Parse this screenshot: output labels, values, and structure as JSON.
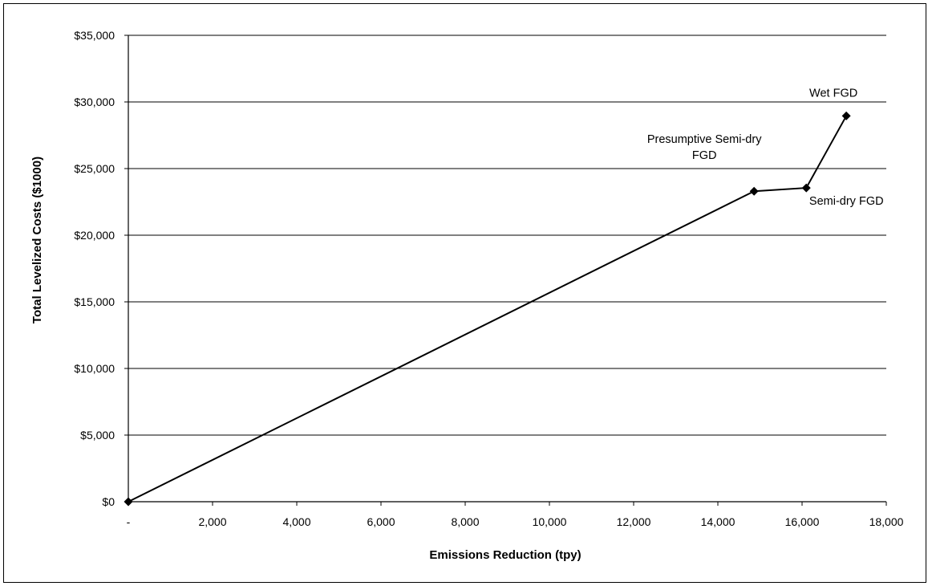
{
  "chart_data": {
    "type": "line",
    "title": "",
    "xlabel": "Emissions Reduction (tpy)",
    "ylabel": "Total Levelized Costs ($1000)",
    "xlim": [
      0,
      18000
    ],
    "ylim": [
      0,
      35000
    ],
    "x_ticks": [
      0,
      2000,
      4000,
      6000,
      8000,
      10000,
      12000,
      14000,
      16000,
      18000
    ],
    "x_tick_labels": [
      "-",
      "2,000",
      "4,000",
      "6,000",
      "8,000",
      "10,000",
      "12,000",
      "14,000",
      "16,000",
      "18,000"
    ],
    "y_ticks": [
      0,
      5000,
      10000,
      15000,
      20000,
      25000,
      30000,
      35000
    ],
    "y_tick_labels": [
      "$0",
      "$5,000",
      "$10,000",
      "$15,000",
      "$20,000",
      "$25,000",
      "$30,000",
      "$35,000"
    ],
    "grid": "horizontal",
    "legend": "none",
    "series": [
      {
        "points": [
          {
            "x": 0,
            "y": 0,
            "label": ""
          },
          {
            "x": 14860,
            "y": 23300,
            "label": "Presumptive Semi-dry FGD"
          },
          {
            "x": 16100,
            "y": 23550,
            "label": "Semi-dry FGD"
          },
          {
            "x": 17050,
            "y": 28950,
            "label": "Wet FGD"
          }
        ],
        "color": "#000000",
        "marker": "diamond"
      }
    ]
  }
}
